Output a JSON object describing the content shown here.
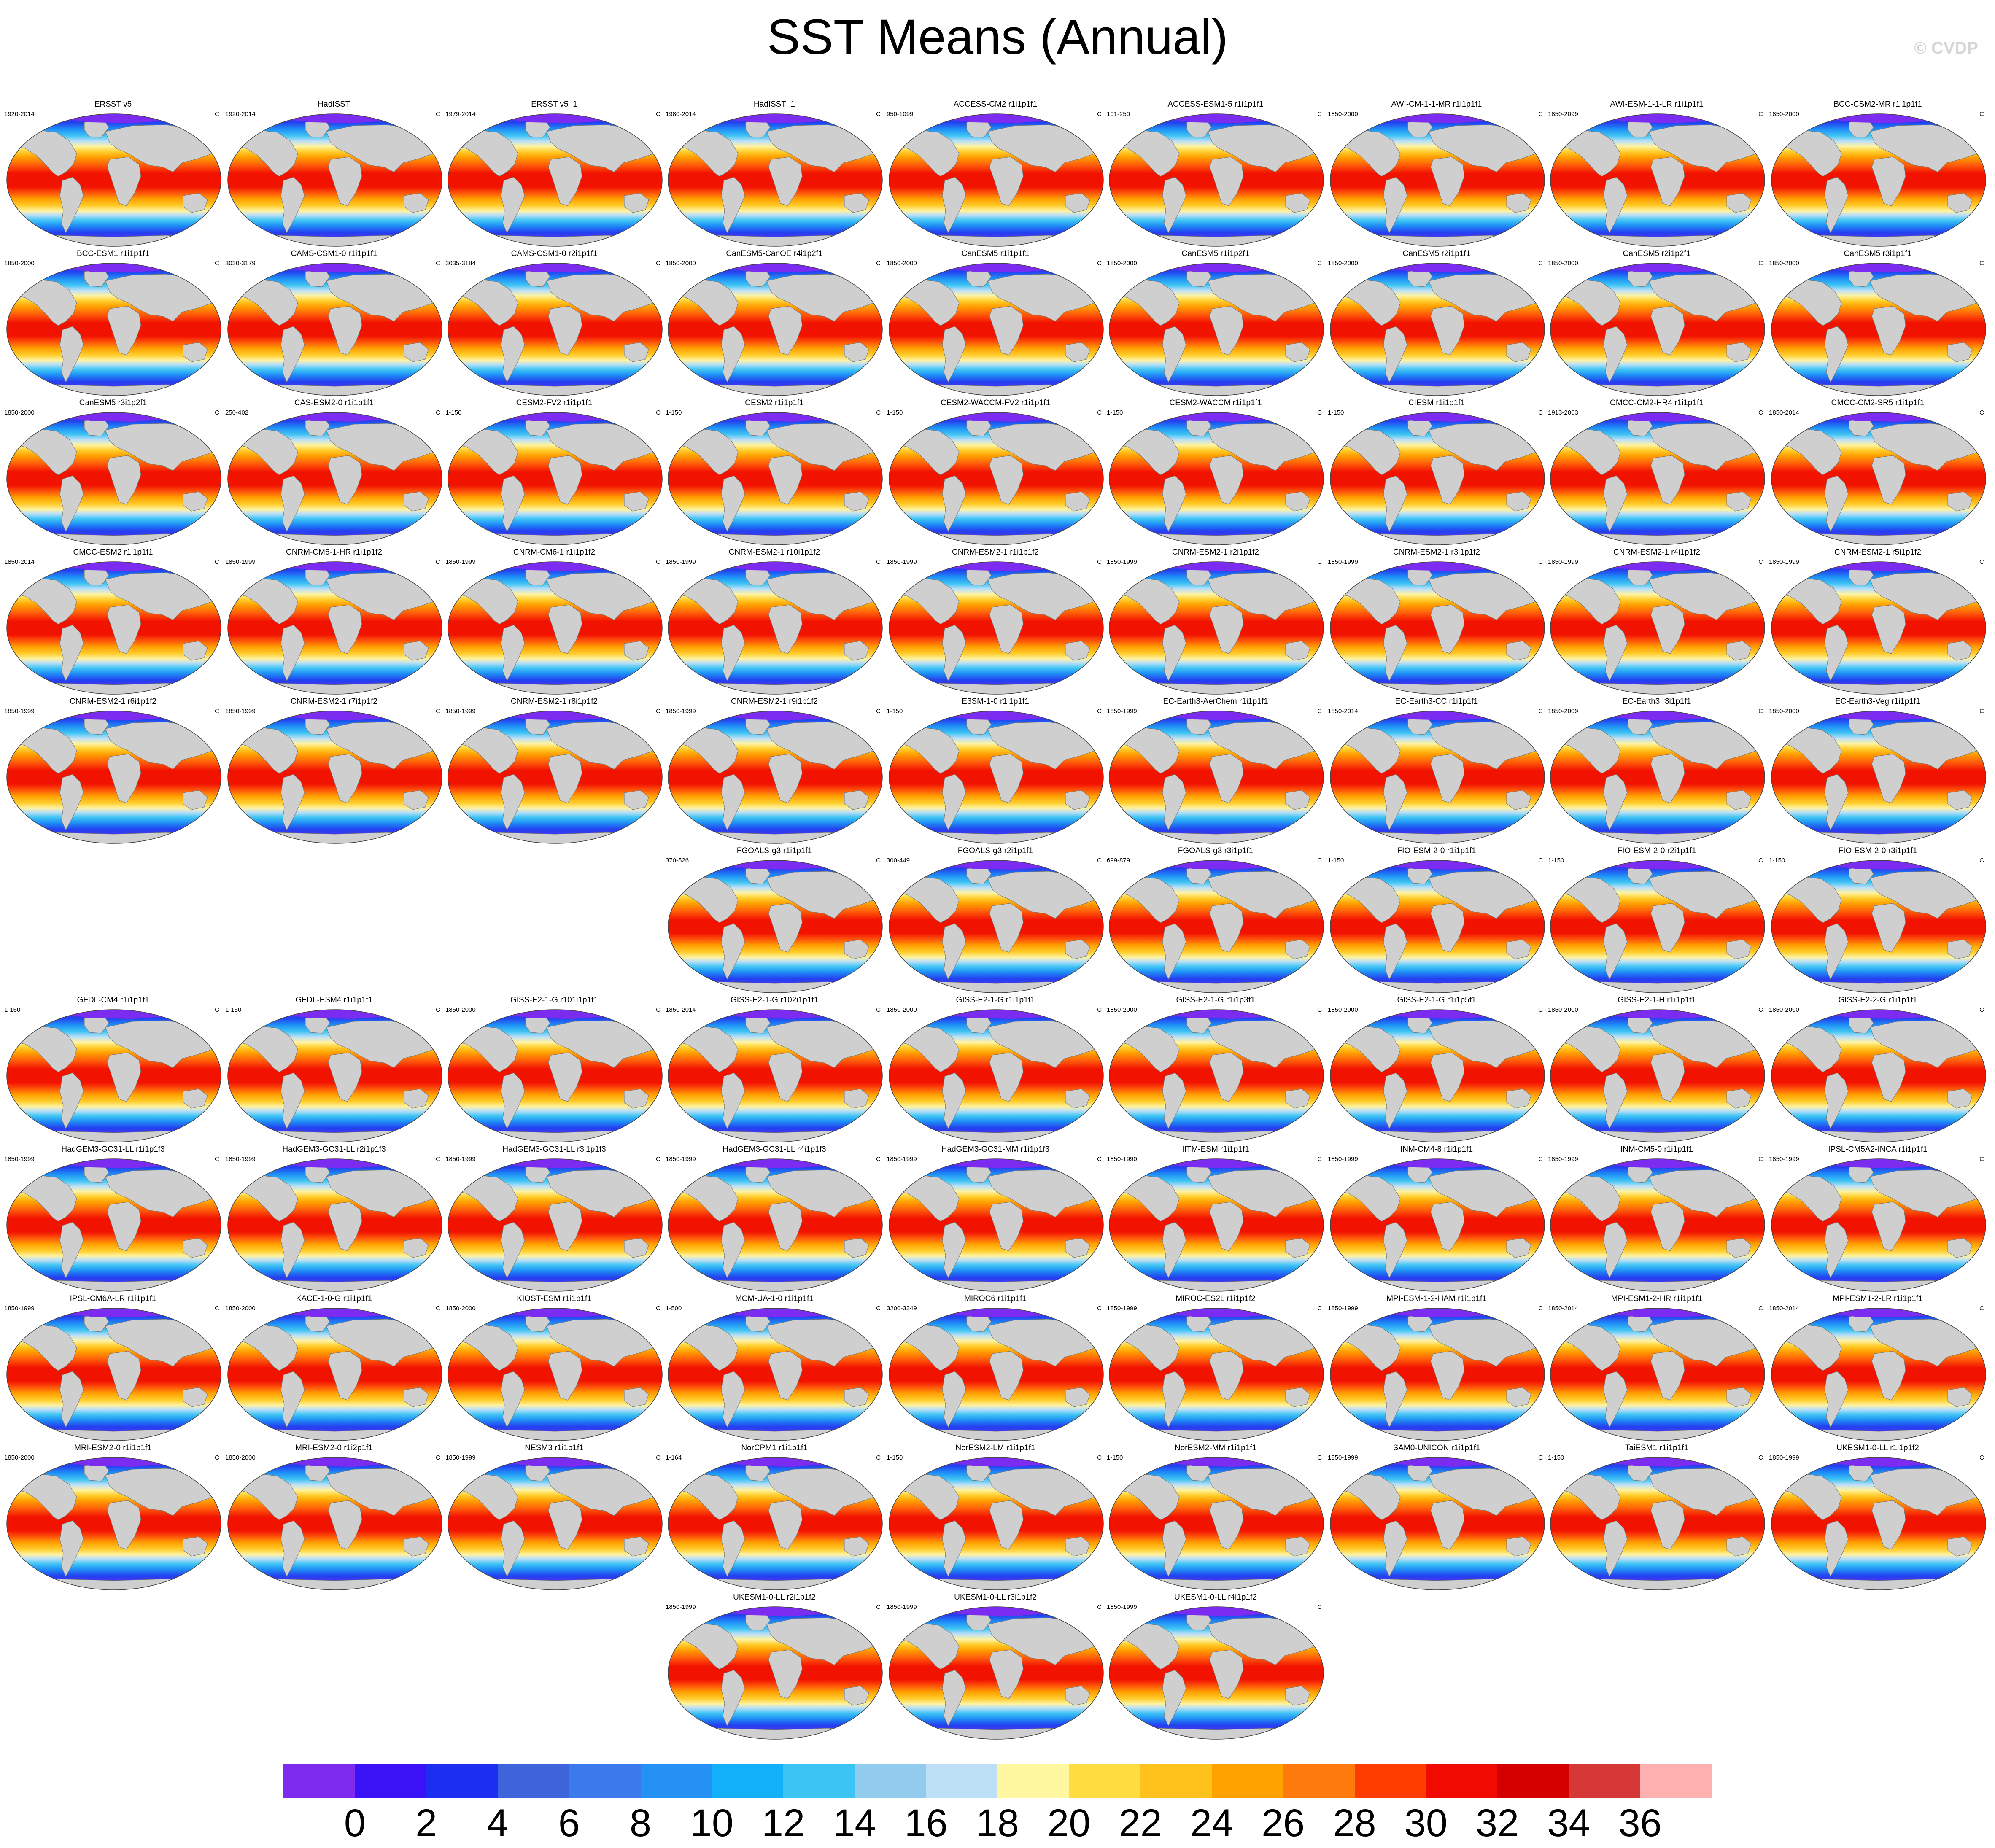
{
  "title": "SST Means (Annual)",
  "watermark": "© CVDP",
  "unit": "C",
  "panels": [
    {
      "name": "ERSST v5",
      "years": "1920-2014"
    },
    {
      "name": "HadISST",
      "years": "1920-2014"
    },
    {
      "name": "ERSST v5_1",
      "years": "1979-2014"
    },
    {
      "name": "HadISST_1",
      "years": "1980-2014"
    },
    {
      "name": "ACCESS-CM2 r1i1p1f1",
      "years": "950-1099"
    },
    {
      "name": "ACCESS-ESM1-5 r1i1p1f1",
      "years": "101-250"
    },
    {
      "name": "AWI-CM-1-1-MR r1i1p1f1",
      "years": "1850-2000"
    },
    {
      "name": "AWI-ESM-1-1-LR r1i1p1f1",
      "years": "1850-2099"
    },
    {
      "name": "BCC-CSM2-MR r1i1p1f1",
      "years": "1850-2000"
    },
    {
      "name": "BCC-ESM1 r1i1p1f1",
      "years": "1850-2000"
    },
    {
      "name": "CAMS-CSM1-0 r1i1p1f1",
      "years": "3030-3179"
    },
    {
      "name": "CAMS-CSM1-0 r2i1p1f1",
      "years": "3035-3184"
    },
    {
      "name": "CanESM5-CanOE r4i1p2f1",
      "years": "1850-2000"
    },
    {
      "name": "CanESM5 r1i1p1f1",
      "years": "1850-2000"
    },
    {
      "name": "CanESM5 r1i1p2f1",
      "years": "1850-2000"
    },
    {
      "name": "CanESM5 r2i1p1f1",
      "years": "1850-2000"
    },
    {
      "name": "CanESM5 r2i1p2f1",
      "years": "1850-2000"
    },
    {
      "name": "CanESM5 r3i1p1f1",
      "years": "1850-2000"
    },
    {
      "name": "CanESM5 r3i1p2f1",
      "years": "1850-2000"
    },
    {
      "name": "CAS-ESM2-0 r1i1p1f1",
      "years": "250-402"
    },
    {
      "name": "CESM2-FV2 r1i1p1f1",
      "years": "1-150"
    },
    {
      "name": "CESM2 r1i1p1f1",
      "years": "1-150"
    },
    {
      "name": "CESM2-WACCM-FV2 r1i1p1f1",
      "years": "1-150"
    },
    {
      "name": "CESM2-WACCM r1i1p1f1",
      "years": "1-150"
    },
    {
      "name": "CIESM r1i1p1f1",
      "years": "1-150"
    },
    {
      "name": "CMCC-CM2-HR4 r1i1p1f1",
      "years": "1913-2063"
    },
    {
      "name": "CMCC-CM2-SR5 r1i1p1f1",
      "years": "1850-2014"
    },
    {
      "name": "CMCC-ESM2 r1i1p1f1",
      "years": "1850-2014"
    },
    {
      "name": "CNRM-CM6-1-HR r1i1p1f2",
      "years": "1850-1999"
    },
    {
      "name": "CNRM-CM6-1 r1i1p1f2",
      "years": "1850-1999"
    },
    {
      "name": "CNRM-ESM2-1 r10i1p1f2",
      "years": "1850-1999"
    },
    {
      "name": "CNRM-ESM2-1 r1i1p1f2",
      "years": "1850-1999"
    },
    {
      "name": "CNRM-ESM2-1 r2i1p1f2",
      "years": "1850-1999"
    },
    {
      "name": "CNRM-ESM2-1 r3i1p1f2",
      "years": "1850-1999"
    },
    {
      "name": "CNRM-ESM2-1 r4i1p1f2",
      "years": "1850-1999"
    },
    {
      "name": "CNRM-ESM2-1 r5i1p1f2",
      "years": "1850-1999"
    },
    {
      "name": "CNRM-ESM2-1 r6i1p1f2",
      "years": "1850-1999"
    },
    {
      "name": "CNRM-ESM2-1 r7i1p1f2",
      "years": "1850-1999"
    },
    {
      "name": "CNRM-ESM2-1 r8i1p1f2",
      "years": "1850-1999"
    },
    {
      "name": "CNRM-ESM2-1 r9i1p1f2",
      "years": "1850-1999"
    },
    {
      "name": "E3SM-1-0 r1i1p1f1",
      "years": "1-150"
    },
    {
      "name": "EC-Earth3-AerChem r1i1p1f1",
      "years": "1850-1999"
    },
    {
      "name": "EC-Earth3-CC r1i1p1f1",
      "years": "1850-2014"
    },
    {
      "name": "EC-Earth3 r3i1p1f1",
      "years": "1850-2009"
    },
    {
      "name": "EC-Earth3-Veg r1i1p1f1",
      "years": "1850-2000"
    },
    {
      "name": "FGOALS-g3 r1i1p1f1",
      "years": "370-526"
    },
    {
      "name": "FGOALS-g3 r2i1p1f1",
      "years": "300-449"
    },
    {
      "name": "FGOALS-g3 r3i1p1f1",
      "years": "699-879"
    },
    {
      "name": "FIO-ESM-2-0 r1i1p1f1",
      "years": "1-150"
    },
    {
      "name": "FIO-ESM-2-0 r2i1p1f1",
      "years": "1-150"
    },
    {
      "name": "FIO-ESM-2-0 r3i1p1f1",
      "years": "1-150"
    },
    {
      "name": "GFDL-CM4 r1i1p1f1",
      "years": "1-150"
    },
    {
      "name": "GFDL-ESM4 r1i1p1f1",
      "years": "1-150"
    },
    {
      "name": "GISS-E2-1-G r101i1p1f1",
      "years": "1850-2000"
    },
    {
      "name": "GISS-E2-1-G r102i1p1f1",
      "years": "1850-2014"
    },
    {
      "name": "GISS-E2-1-G r1i1p1f1",
      "years": "1850-2000"
    },
    {
      "name": "GISS-E2-1-G r1i1p3f1",
      "years": "1850-2000"
    },
    {
      "name": "GISS-E2-1-G r1i1p5f1",
      "years": "1850-2000"
    },
    {
      "name": "GISS-E2-1-H r1i1p1f1",
      "years": "1850-2000"
    },
    {
      "name": "GISS-E2-2-G r1i1p1f1",
      "years": "1850-2000"
    },
    {
      "name": "HadGEM3-GC31-LL r1i1p1f3",
      "years": "1850-1999"
    },
    {
      "name": "HadGEM3-GC31-LL r2i1p1f3",
      "years": "1850-1999"
    },
    {
      "name": "HadGEM3-GC31-LL r3i1p1f3",
      "years": "1850-1999"
    },
    {
      "name": "HadGEM3-GC31-LL r4i1p1f3",
      "years": "1850-1999"
    },
    {
      "name": "HadGEM3-GC31-MM r1i1p1f3",
      "years": "1850-1999"
    },
    {
      "name": "IITM-ESM r1i1p1f1",
      "years": "1850-1990"
    },
    {
      "name": "INM-CM4-8 r1i1p1f1",
      "years": "1850-1999"
    },
    {
      "name": "INM-CM5-0 r1i1p1f1",
      "years": "1850-1999"
    },
    {
      "name": "IPSL-CM5A2-INCA r1i1p1f1",
      "years": "1850-1999"
    },
    {
      "name": "IPSL-CM6A-LR r1i1p1f1",
      "years": "1850-1999"
    },
    {
      "name": "KACE-1-0-G r1i1p1f1",
      "years": "1850-2000"
    },
    {
      "name": "KIOST-ESM r1i1p1f1",
      "years": "1850-2000"
    },
    {
      "name": "MCM-UA-1-0 r1i1p1f1",
      "years": "1-500"
    },
    {
      "name": "MIROC6 r1i1p1f1",
      "years": "3200-3349"
    },
    {
      "name": "MIROC-ES2L r1i1p1f2",
      "years": "1850-1999"
    },
    {
      "name": "MPI-ESM-1-2-HAM r1i1p1f1",
      "years": "1850-1999"
    },
    {
      "name": "MPI-ESM1-2-HR r1i1p1f1",
      "years": "1850-2014"
    },
    {
      "name": "MPI-ESM1-2-LR r1i1p1f1",
      "years": "1850-2014"
    },
    {
      "name": "MRI-ESM2-0 r1i1p1f1",
      "years": "1850-2000"
    },
    {
      "name": "MRI-ESM2-0 r1i2p1f1",
      "years": "1850-2000"
    },
    {
      "name": "NESM3 r1i1p1f1",
      "years": "1850-1999"
    },
    {
      "name": "NorCPM1 r1i1p1f1",
      "years": "1-164"
    },
    {
      "name": "NorESM2-LM r1i1p1f1",
      "years": "1-150"
    },
    {
      "name": "NorESM2-MM r1i1p1f1",
      "years": "1-150"
    },
    {
      "name": "SAM0-UNICON r1i1p1f1",
      "years": "1850-1999"
    },
    {
      "name": "TaiESM1 r1i1p1f1",
      "years": "1-150"
    },
    {
      "name": "UKESM1-0-LL r1i1p1f2",
      "years": "1850-1999"
    },
    {
      "name": "UKESM1-0-LL r2i1p1f2",
      "years": "1850-1999"
    },
    {
      "name": "UKESM1-0-LL r3i1p1f2",
      "years": "1850-1999"
    },
    {
      "name": "UKESM1-0-LL r4i1p1f2",
      "years": "1850-1999"
    }
  ],
  "colorbar": {
    "labels": [
      "0",
      "2",
      "4",
      "6",
      "8",
      "10",
      "12",
      "14",
      "16",
      "18",
      "20",
      "22",
      "24",
      "26",
      "28",
      "30",
      "32",
      "34",
      "36"
    ],
    "colors": [
      "#7f2bef",
      "#3b12f5",
      "#1c2ef0",
      "#3e64dc",
      "#3a7aec",
      "#2591f5",
      "#11b0f8",
      "#3bc4f4",
      "#91ccee",
      "#bde0f7",
      "#fff8a0",
      "#ffdd40",
      "#ffc21c",
      "#ffa200",
      "#ff7a0c",
      "#ff3c00",
      "#f00a00",
      "#d40000",
      "#d63838",
      "#ffb0b0"
    ]
  },
  "map_colors": {
    "ocean_band": [
      "#7c2bf0",
      "#2440f0",
      "#1e8ff6",
      "#3fc4f4",
      "#bde0f7",
      "#fff3a0",
      "#ffcc2a",
      "#ff9f00",
      "#ff5a0a",
      "#f21200"
    ],
    "land": "#cfcfcf",
    "coast": "#777777",
    "sea_ice": "#7c2bf0"
  }
}
